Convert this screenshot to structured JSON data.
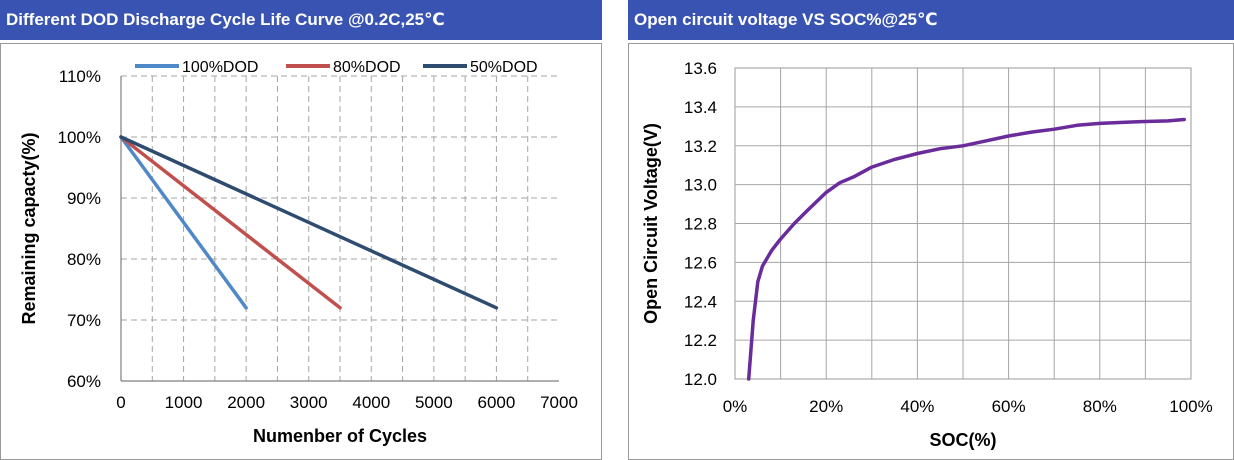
{
  "chart_data": [
    {
      "type": "line",
      "title": "Different DOD Discharge Cycle Life Curve @0.2C,25℃",
      "xlabel": "Numenber of Cycles",
      "ylabel": "Remaining capacty(%)",
      "xlim": [
        0,
        7000
      ],
      "ylim": [
        60,
        110
      ],
      "x_ticks": [
        "0",
        "1000",
        "2000",
        "3000",
        "4000",
        "5000",
        "6000",
        "7000"
      ],
      "y_ticks": [
        "60%",
        "70%",
        "80%",
        "90%",
        "100%",
        "110%"
      ],
      "grid": true,
      "grid_style": "dashed",
      "legend_position": "top",
      "series": [
        {
          "name": "100%DOD",
          "color": "#4f88c6",
          "x": [
            0,
            2000
          ],
          "y": [
            100,
            72
          ]
        },
        {
          "name": "80%DOD",
          "color": "#c0504d",
          "x": [
            0,
            3500
          ],
          "y": [
            100,
            72
          ]
        },
        {
          "name": "50%DOD",
          "color": "#2e4b70",
          "x": [
            0,
            6000
          ],
          "y": [
            100,
            72
          ]
        }
      ]
    },
    {
      "type": "line",
      "title": "Open circuit voltage VS SOC%@25℃",
      "xlabel": "SOC(%)",
      "ylabel": "Open Circuit Voltage(V)",
      "xlim": [
        0,
        100
      ],
      "ylim": [
        12.0,
        13.6
      ],
      "x_ticks": [
        "0%",
        "20%",
        "40%",
        "60%",
        "80%",
        "100%"
      ],
      "y_ticks": [
        "12.0",
        "12.2",
        "12.4",
        "12.6",
        "12.8",
        "13.0",
        "13.2",
        "13.4",
        "13.6"
      ],
      "grid": true,
      "grid_style": "solid",
      "series": [
        {
          "color": "#6a2b9b",
          "x": [
            3,
            4,
            5,
            6,
            8,
            10,
            13,
            16,
            20,
            23,
            26,
            30,
            35,
            40,
            45,
            50,
            55,
            60,
            65,
            70,
            75,
            80,
            85,
            90,
            95,
            98.5
          ],
          "y": [
            12.0,
            12.3,
            12.5,
            12.58,
            12.66,
            12.72,
            12.8,
            12.87,
            12.96,
            13.01,
            13.04,
            13.09,
            13.13,
            13.16,
            13.185,
            13.2,
            13.225,
            13.25,
            13.27,
            13.285,
            13.305,
            13.315,
            13.32,
            13.325,
            13.328,
            13.335
          ]
        }
      ]
    }
  ]
}
